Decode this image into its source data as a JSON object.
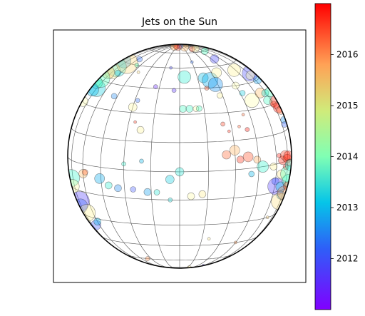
{
  "chart_data": {
    "type": "scatter",
    "title": "Jets on the Sun",
    "projection": "orthographic-globe",
    "grid": true,
    "colorbar": {
      "colormap": "rainbow",
      "position": "right",
      "range": [
        2011.0,
        2017.0
      ],
      "ticks": [
        2012,
        2013,
        2014,
        2015,
        2016
      ],
      "tick_labels": [
        "2012",
        "2013",
        "2014",
        "2015",
        "2016"
      ]
    },
    "points": [
      {
        "lon": -85,
        "lat": 60,
        "year": 2012.2,
        "r": 10
      },
      {
        "lon": -80,
        "lat": 55,
        "year": 2013.1,
        "r": 14
      },
      {
        "lon": -78,
        "lat": 52,
        "year": 2014.4,
        "r": 11
      },
      {
        "lon": -84,
        "lat": 50,
        "year": 2015.3,
        "r": 9
      },
      {
        "lon": -70,
        "lat": 60,
        "year": 2015.0,
        "r": 15
      },
      {
        "lon": -75,
        "lat": 40,
        "year": 2012.8,
        "r": 12
      },
      {
        "lon": -86,
        "lat": 42,
        "year": 2013.6,
        "r": 8
      },
      {
        "lon": -88,
        "lat": 45,
        "year": 2013.9,
        "r": 13
      },
      {
        "lon": -82,
        "lat": 38,
        "year": 2012.5,
        "r": 9
      },
      {
        "lon": -87,
        "lat": 30,
        "year": 2014.1,
        "r": 7
      },
      {
        "lon": -80,
        "lat": -10,
        "year": 2013.5,
        "r": 12
      },
      {
        "lon": -84,
        "lat": -15,
        "year": 2014.3,
        "r": 10
      },
      {
        "lon": -75,
        "lat": -22,
        "year": 2011.5,
        "r": 14
      },
      {
        "lon": -88,
        "lat": -20,
        "year": 2013.4,
        "r": 11
      },
      {
        "lon": -78,
        "lat": -25,
        "year": 2011.8,
        "r": 10
      },
      {
        "lon": -70,
        "lat": -28,
        "year": 2014.6,
        "r": 12
      },
      {
        "lon": -66,
        "lat": -35,
        "year": 2011.7,
        "r": 7
      },
      {
        "lon": -60,
        "lat": -32,
        "year": 2012.5,
        "r": 5
      },
      {
        "lon": -58,
        "lat": 65,
        "year": 2011.9,
        "r": 4
      },
      {
        "lon": -64,
        "lat": 52,
        "year": 2012.6,
        "r": 4
      },
      {
        "lon": -48,
        "lat": 38,
        "year": 2012.1,
        "r": 4
      },
      {
        "lon": -50,
        "lat": 60,
        "year": 2013.9,
        "r": 3
      },
      {
        "lon": -28,
        "lat": 37,
        "year": 2011.9,
        "r": 3
      },
      {
        "lon": -30,
        "lat": 33,
        "year": 2014.4,
        "r": 6
      },
      {
        "lon": -26,
        "lat": 25,
        "year": 2016.6,
        "r": 2
      },
      {
        "lon": -22,
        "lat": 21,
        "year": 2014.5,
        "r": 5
      },
      {
        "lon": -18,
        "lat": 46,
        "year": 2011.3,
        "r": 3
      },
      {
        "lon": -9,
        "lat": 60,
        "year": 2011.6,
        "r": 2
      },
      {
        "lon": -4,
        "lat": 44,
        "year": 2011.4,
        "r": 3
      },
      {
        "lon": 2,
        "lat": 33,
        "year": 2013.7,
        "r": 5
      },
      {
        "lon": 6,
        "lat": 33,
        "year": 2013.6,
        "r": 5
      },
      {
        "lon": 10,
        "lat": 33,
        "year": 2014.2,
        "r": 4
      },
      {
        "lon": 12,
        "lat": 33,
        "year": 2013.8,
        "r": 4
      },
      {
        "lon": 4,
        "lat": 53,
        "year": 2013.3,
        "r": 9
      },
      {
        "lon": 20,
        "lat": 52,
        "year": 2012.6,
        "r": 7
      },
      {
        "lon": 25,
        "lat": 50,
        "year": 2012.4,
        "r": 11
      },
      {
        "lon": 28,
        "lat": 47,
        "year": 2012.2,
        "r": 10
      },
      {
        "lon": 35,
        "lat": 55,
        "year": 2014.4,
        "r": 7
      },
      {
        "lon": 45,
        "lat": 45,
        "year": 2014.1,
        "r": 5
      },
      {
        "lon": 47,
        "lat": 40,
        "year": 2012.8,
        "r": 4
      },
      {
        "lon": 52,
        "lat": 35,
        "year": 2014.2,
        "r": 10
      },
      {
        "lon": 28,
        "lat": 40,
        "year": 2014.5,
        "r": 4
      },
      {
        "lon": 20,
        "lat": 45,
        "year": 2016.4,
        "r": 3
      },
      {
        "lon": 25,
        "lat": 24,
        "year": 2016.5,
        "r": 3
      },
      {
        "lon": 28,
        "lat": 20,
        "year": 2016.7,
        "r": 2
      },
      {
        "lon": 35,
        "lat": 22,
        "year": 2016.3,
        "r": 2
      },
      {
        "lon": 40,
        "lat": 20,
        "year": 2016.8,
        "r": 3
      },
      {
        "lon": 30,
        "lat": 10,
        "year": 2015.5,
        "r": 7
      },
      {
        "lon": 25,
        "lat": 8,
        "year": 2016.2,
        "r": 6
      },
      {
        "lon": 33,
        "lat": 5,
        "year": 2016.6,
        "r": 5
      },
      {
        "lon": 38,
        "lat": 6,
        "year": 2016.4,
        "r": 7
      },
      {
        "lon": 44,
        "lat": 4,
        "year": 2015.6,
        "r": 5
      },
      {
        "lon": 48,
        "lat": 0,
        "year": 2013.4,
        "r": 8
      },
      {
        "lon": 40,
        "lat": -3,
        "year": 2012.5,
        "r": 4
      },
      {
        "lon": 57,
        "lat": -1,
        "year": 2014.6,
        "r": 5
      },
      {
        "lon": 60,
        "lat": -9,
        "year": 2011.9,
        "r": 5
      },
      {
        "lon": 66,
        "lat": -6,
        "year": 2014.8,
        "r": 6
      },
      {
        "lon": 63,
        "lat": 4,
        "year": 2016.8,
        "r": 3
      },
      {
        "lon": 67,
        "lat": 1,
        "year": 2016.7,
        "r": 6
      },
      {
        "lon": 71,
        "lat": 3,
        "year": 2016.5,
        "r": 7
      },
      {
        "lon": 74,
        "lat": 1,
        "year": 2016.6,
        "r": 6
      },
      {
        "lon": 77,
        "lat": 2,
        "year": 2016.7,
        "r": 7
      },
      {
        "lon": 80,
        "lat": -2,
        "year": 2016.3,
        "r": 5
      },
      {
        "lon": 72,
        "lat": -3,
        "year": 2016.9,
        "r": 4
      },
      {
        "lon": 62,
        "lat": -12,
        "year": 2011.5,
        "r": 12
      },
      {
        "lon": 68,
        "lat": -13,
        "year": 2012.7,
        "r": 7
      },
      {
        "lon": 72,
        "lat": -18,
        "year": 2012.4,
        "r": 6
      },
      {
        "lon": 75,
        "lat": -22,
        "year": 2014.9,
        "r": 12
      },
      {
        "lon": 80,
        "lat": -18,
        "year": 2015.8,
        "r": 10
      },
      {
        "lon": 84,
        "lat": -12,
        "year": 2013.6,
        "r": 9
      },
      {
        "lon": 86,
        "lat": -15,
        "year": 2016.4,
        "r": 6
      },
      {
        "lon": 81,
        "lat": -8,
        "year": 2013.9,
        "r": 12
      },
      {
        "lon": 86,
        "lat": -4,
        "year": 2013.2,
        "r": 8
      },
      {
        "lon": 66,
        "lat": 38,
        "year": 2015.4,
        "r": 7
      },
      {
        "lon": 70,
        "lat": 33,
        "year": 2013.7,
        "r": 6
      },
      {
        "lon": 73,
        "lat": 37,
        "year": 2013.1,
        "r": 5
      },
      {
        "lon": 76,
        "lat": 30,
        "year": 2016.5,
        "r": 4
      },
      {
        "lon": 82,
        "lat": 27,
        "year": 2016.9,
        "r": 7
      },
      {
        "lon": 85,
        "lat": 30,
        "year": 2016.6,
        "r": 9
      },
      {
        "lon": 87,
        "lat": 25,
        "year": 2016.1,
        "r": 6
      },
      {
        "lon": 84,
        "lat": 20,
        "year": 2012.2,
        "r": 5
      },
      {
        "lon": 86,
        "lat": 36,
        "year": 2013.8,
        "r": 7
      },
      {
        "lon": 80,
        "lat": 45,
        "year": 2012.3,
        "r": 6
      },
      {
        "lon": 78,
        "lat": 50,
        "year": 2011.6,
        "r": 11
      },
      {
        "lon": 74,
        "lat": 49,
        "year": 2014.3,
        "r": 6
      },
      {
        "lon": 58,
        "lat": 55,
        "year": 2014.6,
        "r": 9
      },
      {
        "lon": 50,
        "lat": 66,
        "year": 2011.6,
        "r": 6
      },
      {
        "lon": 80,
        "lat": 18,
        "year": 2011.8,
        "r": 4
      },
      {
        "lon": 30,
        "lat": 85,
        "year": 2015.5,
        "r": 6
      },
      {
        "lon": 40,
        "lat": 80,
        "year": 2016.4,
        "r": 4
      },
      {
        "lon": 55,
        "lat": 80,
        "year": 2014.5,
        "r": 5
      },
      {
        "lon": 10,
        "lat": 88,
        "year": 2011.9,
        "r": 4
      },
      {
        "lon": -10,
        "lat": 85,
        "year": 2016.5,
        "r": 5
      },
      {
        "lon": -25,
        "lat": 86,
        "year": 2016.8,
        "r": 4
      },
      {
        "lon": -35,
        "lat": 85,
        "year": 2015.6,
        "r": 5
      },
      {
        "lon": 60,
        "lat": 75,
        "year": 2013.8,
        "r": 5
      },
      {
        "lon": -60,
        "lat": -5,
        "year": 2015.4,
        "r": 6
      },
      {
        "lon": -58,
        "lat": -4,
        "year": 2016.2,
        "r": 4
      },
      {
        "lon": -46,
        "lat": -6,
        "year": 2012.4,
        "r": 7
      },
      {
        "lon": -40,
        "lat": -9,
        "year": 2013.3,
        "r": 5
      },
      {
        "lon": -34,
        "lat": -10,
        "year": 2012.1,
        "r": 5
      },
      {
        "lon": -25,
        "lat": -10,
        "year": 2011.7,
        "r": 4
      },
      {
        "lon": -17,
        "lat": -11,
        "year": 2012.3,
        "r": 5
      },
      {
        "lon": -12,
        "lat": -11,
        "year": 2013.2,
        "r": 4
      },
      {
        "lon": -5,
        "lat": -4,
        "year": 2012.8,
        "r": 6
      },
      {
        "lon": 0,
        "lat": 0,
        "year": 2013.2,
        "r": 6
      },
      {
        "lon": 6,
        "lat": -13,
        "year": 2014.3,
        "r": 5
      },
      {
        "lon": 12,
        "lat": -12,
        "year": 2014.7,
        "r": 5
      },
      {
        "lon": -30,
        "lat": 3,
        "year": 2013.4,
        "r": 3
      },
      {
        "lon": -20,
        "lat": 5,
        "year": 2012.5,
        "r": 3
      },
      {
        "lon": -5,
        "lat": -15,
        "year": 2013.0,
        "r": 3
      },
      {
        "lon": 20,
        "lat": -40,
        "year": 2014.8,
        "r": 2
      },
      {
        "lon": 45,
        "lat": -45,
        "year": 2015.8,
        "r": 2
      },
      {
        "lon": -35,
        "lat": -60,
        "year": 2015.9,
        "r": 3
      },
      {
        "lon": -28,
        "lat": -87,
        "year": 2015.4,
        "r": 4
      },
      {
        "lon": -10,
        "lat": -88,
        "year": 2012.3,
        "r": 5
      },
      {
        "lon": 30,
        "lat": -80,
        "year": 2014.8,
        "r": 3
      },
      {
        "lon": 55,
        "lat": -75,
        "year": 2011.5,
        "r": 2
      },
      {
        "lon": 65,
        "lat": -30,
        "year": 2015.2,
        "r": 2
      },
      {
        "lon": 40,
        "lat": 28,
        "year": 2016.2,
        "r": 2
      },
      {
        "lon": 15,
        "lat": 65,
        "year": 2011.9,
        "r": 2
      },
      {
        "lon": -40,
        "lat": 55,
        "year": 2014.9,
        "r": 2
      }
    ]
  }
}
